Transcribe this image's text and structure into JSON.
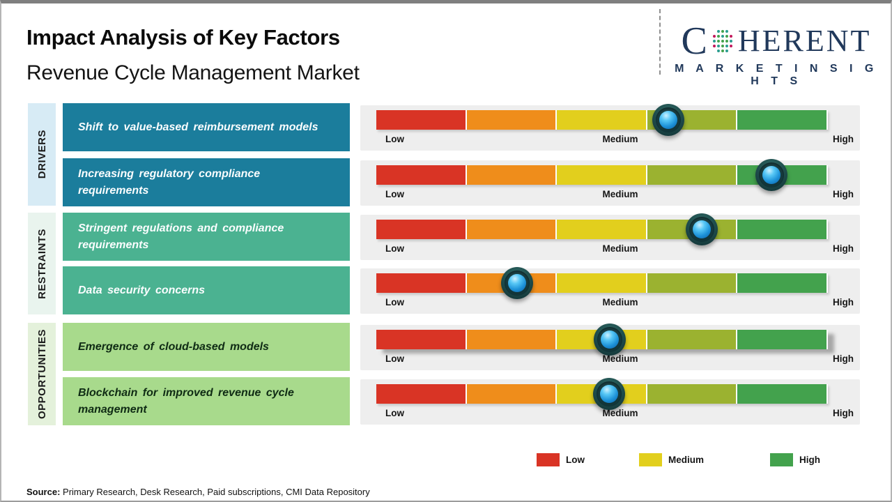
{
  "page": {
    "title": "Impact Analysis of Key Factors",
    "subtitle": "Revenue Cycle Management Market",
    "source_prefix": "Source:",
    "source_text": " Primary Research, Desk Research, Paid subscriptions, CMI Data Repository"
  },
  "logo": {
    "brand_start": "C",
    "brand_end": "HERENT",
    "tagline": "M A R K E T  I N S I G H T S",
    "navy": "#21395B"
  },
  "groups": [
    {
      "label": "DRIVERS",
      "label_bg": "#D7EBF5",
      "box_bg": "#1B7D9C",
      "text_color": "#FFFFFF"
    },
    {
      "label": "RESTRAINTS",
      "label_bg": "#E9F4EE",
      "box_bg": "#4BB291",
      "text_color": "#FFFFFF"
    },
    {
      "label": "OPPORTUNITIES",
      "label_bg": "#E4F1DB",
      "box_bg": "#A8DA8C",
      "text_color": "#0F2B14"
    }
  ],
  "rows": [
    {
      "group": "DRIVERS",
      "factor": "Shift to value-based  reimbursement  models",
      "marker_pct": 64.7,
      "impact_level": "Medium-High"
    },
    {
      "group": "DRIVERS",
      "factor": "Increasing  regulatory  compliance requirements",
      "marker_pct": 87.5,
      "impact_level": "High"
    },
    {
      "group": "RESTRAINTS",
      "factor": "Stringent  regulations  and  compliance requirements",
      "marker_pct": 72.0,
      "impact_level": "Medium-High"
    },
    {
      "group": "RESTRAINTS",
      "factor": "Data  security  concerns",
      "marker_pct": 31.2,
      "impact_level": "Low-Medium"
    },
    {
      "group": "OPPORTUNITIES",
      "factor": "Emergence  of  cloud-based  models",
      "marker_pct": 51.7,
      "impact_level": "Medium"
    },
    {
      "group": "OPPORTUNITIES",
      "factor": "Blockchain  for  improved  revenue  cycle management",
      "marker_pct": 51.5,
      "impact_level": "Medium"
    }
  ],
  "scale": {
    "low": "Low",
    "medium": "Medium",
    "high": "High"
  },
  "segment_colors": [
    "#D93425",
    "#EF8D1B",
    "#E2CF1D",
    "#9BB230",
    "#43A24D"
  ],
  "legend": [
    {
      "label": "Low",
      "color": "#D93425"
    },
    {
      "label": "Medium",
      "color": "#E2CF1D"
    },
    {
      "label": "High",
      "color": "#43A24D"
    }
  ],
  "chart_data": {
    "type": "scatter",
    "title": "Impact Analysis of Key Factors",
    "subtitle": "Revenue Cycle Management Market",
    "categories": [
      "Shift to value-based reimbursement models",
      "Increasing regulatory compliance requirements",
      "Stringent regulations and compliance requirements",
      "Data security concerns",
      "Emergence of cloud-based models",
      "Blockchain for improved revenue cycle management"
    ],
    "category_groups": [
      "Drivers",
      "Drivers",
      "Restraints",
      "Restraints",
      "Opportunities",
      "Opportunities"
    ],
    "series": [
      {
        "name": "Impact position (0=Low, 50=Medium, 100=High)",
        "values": [
          65,
          87,
          72,
          31,
          52,
          52
        ]
      }
    ],
    "xlabel": "Impact level",
    "ylabel": "Key factor",
    "xlim": [
      0,
      100
    ],
    "x_tick_labels": [
      "Low",
      "Medium",
      "High"
    ],
    "grid": false,
    "legend_position": "bottom",
    "legend_entries": [
      "Low",
      "Medium",
      "High"
    ],
    "scale_segment_colors": [
      "#D93425",
      "#EF8D1B",
      "#E2CF1D",
      "#9BB230",
      "#43A24D"
    ]
  }
}
